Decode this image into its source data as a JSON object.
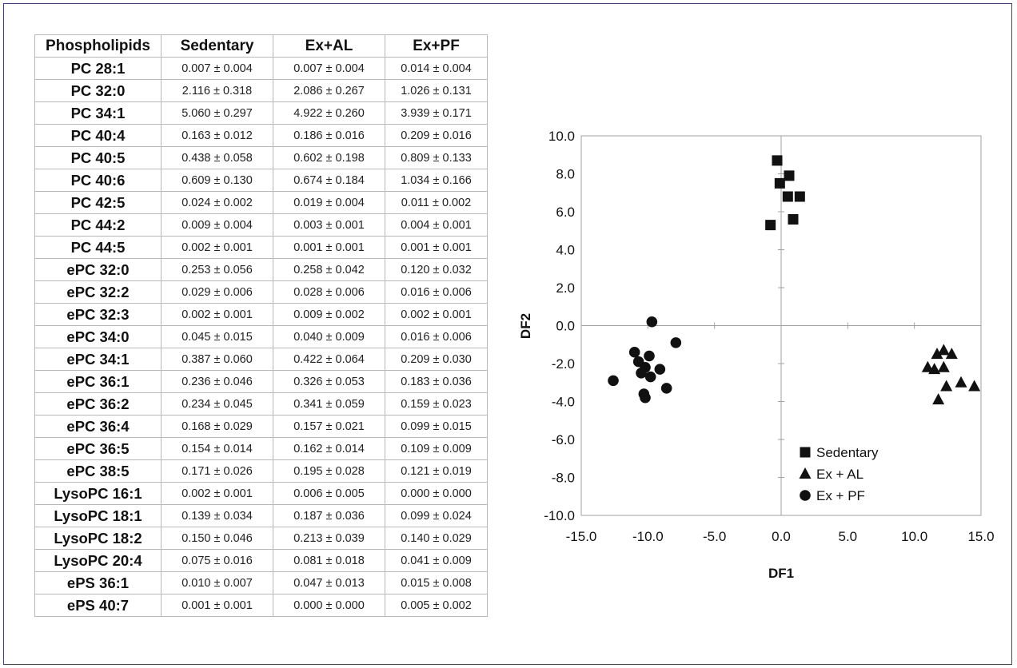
{
  "table": {
    "headers": [
      "Phospholipids",
      "Sedentary",
      "Ex+AL",
      "Ex+PF"
    ],
    "rows": [
      [
        "PC 28:1",
        "0.007 ± 0.004",
        "0.007 ± 0.004",
        "0.014 ± 0.004"
      ],
      [
        "PC 32:0",
        "2.116 ± 0.318",
        "2.086 ± 0.267",
        "1.026 ± 0.131"
      ],
      [
        "PC 34:1",
        "5.060 ± 0.297",
        "4.922 ± 0.260",
        "3.939 ± 0.171"
      ],
      [
        "PC 40:4",
        "0.163 ± 0.012",
        "0.186 ± 0.016",
        "0.209 ± 0.016"
      ],
      [
        "PC 40:5",
        "0.438 ± 0.058",
        "0.602 ± 0.198",
        "0.809 ± 0.133"
      ],
      [
        "PC 40:6",
        "0.609 ± 0.130",
        "0.674 ± 0.184",
        "1.034 ± 0.166"
      ],
      [
        "PC 42:5",
        "0.024 ± 0.002",
        "0.019 ± 0.004",
        "0.011 ± 0.002"
      ],
      [
        "PC 44:2",
        "0.009 ± 0.004",
        "0.003 ± 0.001",
        "0.004 ± 0.001"
      ],
      [
        "PC 44:5",
        "0.002 ± 0.001",
        "0.001 ± 0.001",
        "0.001 ± 0.001"
      ],
      [
        "ePC 32:0",
        "0.253 ± 0.056",
        "0.258 ± 0.042",
        "0.120 ± 0.032"
      ],
      [
        "ePC 32:2",
        "0.029 ± 0.006",
        "0.028 ± 0.006",
        "0.016 ± 0.006"
      ],
      [
        "ePC 32:3",
        "0.002 ± 0.001",
        "0.009 ± 0.002",
        "0.002 ± 0.001"
      ],
      [
        "ePC 34:0",
        "0.045 ± 0.015",
        "0.040 ± 0.009",
        "0.016 ± 0.006"
      ],
      [
        "ePC 34:1",
        "0.387 ± 0.060",
        "0.422 ± 0.064",
        "0.209 ± 0.030"
      ],
      [
        "ePC 36:1",
        "0.236 ± 0.046",
        "0.326 ± 0.053",
        "0.183 ± 0.036"
      ],
      [
        "ePC 36:2",
        "0.234 ± 0.045",
        "0.341 ± 0.059",
        "0.159 ± 0.023"
      ],
      [
        "ePC 36:4",
        "0.168 ± 0.029",
        "0.157 ± 0.021",
        "0.099 ± 0.015"
      ],
      [
        "ePC 36:5",
        "0.154 ± 0.014",
        "0.162 ± 0.014",
        "0.109 ± 0.009"
      ],
      [
        "ePC 38:5",
        "0.171 ± 0.026",
        "0.195 ± 0.028",
        "0.121 ± 0.019"
      ],
      [
        "LysoPC 16:1",
        "0.002 ± 0.001",
        "0.006 ± 0.005",
        "0.000 ± 0.000"
      ],
      [
        "LysoPC 18:1",
        "0.139 ± 0.034",
        "0.187 ± 0.036",
        "0.099 ± 0.024"
      ],
      [
        "LysoPC 18:2",
        "0.150 ± 0.046",
        "0.213 ± 0.039",
        "0.140 ± 0.029"
      ],
      [
        "LysoPC 20:4",
        "0.075 ± 0.016",
        "0.081 ± 0.018",
        "0.041 ± 0.009"
      ],
      [
        "ePS 36:1",
        "0.010 ± 0.007",
        "0.047 ± 0.013",
        "0.015 ± 0.008"
      ],
      [
        "ePS 40:7",
        "0.001 ± 0.001",
        "0.000 ± 0.000",
        "0.005 ± 0.002"
      ]
    ]
  },
  "chart_data": {
    "type": "scatter",
    "xlabel": "DF1",
    "ylabel": "DF2",
    "xlim": [
      -15,
      15
    ],
    "ylim": [
      -10,
      10
    ],
    "xticks": [
      "-15.0",
      "-10.0",
      "-5.0",
      "0.0",
      "5.0",
      "10.0",
      "15.0"
    ],
    "yticks": [
      "10.0",
      "8.0",
      "6.0",
      "4.0",
      "2.0",
      "0.0",
      "-2.0",
      "-4.0",
      "-6.0",
      "-8.0",
      "-10.0"
    ],
    "grid": false,
    "axes_through_origin": true,
    "legend_position": "bottom-right",
    "series": [
      {
        "name": "Sedentary",
        "marker": "square",
        "points": [
          [
            -0.3,
            8.7
          ],
          [
            0.6,
            7.9
          ],
          [
            -0.1,
            7.5
          ],
          [
            0.5,
            6.8
          ],
          [
            1.4,
            6.8
          ],
          [
            -0.8,
            5.3
          ],
          [
            0.9,
            5.6
          ]
        ]
      },
      {
        "name": "Ex + AL",
        "marker": "triangle",
        "points": [
          [
            11.7,
            -1.5
          ],
          [
            12.2,
            -1.3
          ],
          [
            12.8,
            -1.5
          ],
          [
            11.0,
            -2.2
          ],
          [
            11.5,
            -2.3
          ],
          [
            12.2,
            -2.2
          ],
          [
            12.4,
            -3.2
          ],
          [
            13.5,
            -3.0
          ],
          [
            14.5,
            -3.2
          ],
          [
            11.8,
            -3.9
          ]
        ]
      },
      {
        "name": "Ex + PF",
        "marker": "circle",
        "points": [
          [
            -9.7,
            0.2
          ],
          [
            -7.9,
            -0.9
          ],
          [
            -11.0,
            -1.4
          ],
          [
            -9.9,
            -1.6
          ],
          [
            -10.7,
            -1.9
          ],
          [
            -10.2,
            -2.2
          ],
          [
            -9.1,
            -2.3
          ],
          [
            -10.5,
            -2.5
          ],
          [
            -9.8,
            -2.7
          ],
          [
            -12.6,
            -2.9
          ],
          [
            -8.6,
            -3.3
          ],
          [
            -10.3,
            -3.6
          ],
          [
            -10.2,
            -3.8
          ]
        ]
      }
    ]
  },
  "colors": {
    "frame": "#4a3a86",
    "table_border": "#b9b9b9",
    "axis": "#a0a0a0",
    "marker": "#111111"
  }
}
